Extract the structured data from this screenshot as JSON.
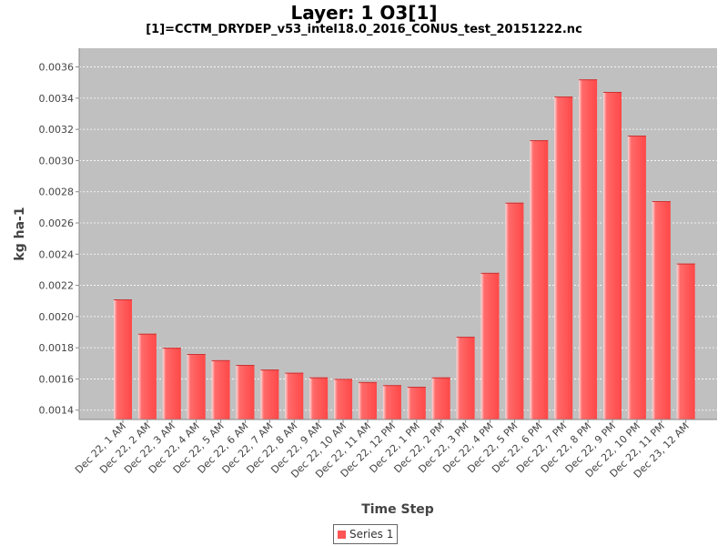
{
  "title": "Layer: 1 O3[1]",
  "subtitle": "[1]=CCTM_DRYDEP_v53_intel18.0_2016_CONUS_test_20151222.nc",
  "chart_data": {
    "type": "bar",
    "title": "Layer: 1 O3[1]",
    "subtitle": "[1]=CCTM_DRYDEP_v53_intel18.0_2016_CONUS_test_20151222.nc",
    "xlabel": "Time Step",
    "ylabel": "kg ha-1",
    "categories": [
      "Dec 22, 1 AM",
      "Dec 22, 2 AM",
      "Dec 22, 3 AM",
      "Dec 22, 4 AM",
      "Dec 22, 5 AM",
      "Dec 22, 6 AM",
      "Dec 22, 7 AM",
      "Dec 22, 8 AM",
      "Dec 22, 9 AM",
      "Dec 22, 10 AM",
      "Dec 22, 11 AM",
      "Dec 22, 12 PM",
      "Dec 22, 1 PM",
      "Dec 22, 2 PM",
      "Dec 22, 3 PM",
      "Dec 22, 4 PM",
      "Dec 22, 5 PM",
      "Dec 22, 6 PM",
      "Dec 22, 7 PM",
      "Dec 22, 8 PM",
      "Dec 22, 9 PM",
      "Dec 22, 10 PM",
      "Dec 22, 11 PM",
      "Dec 23, 12 AM"
    ],
    "series": [
      {
        "name": "Series 1",
        "color": "#ff5555",
        "values": [
          0.00211,
          0.00189,
          0.0018,
          0.00176,
          0.00172,
          0.00169,
          0.00166,
          0.00164,
          0.00161,
          0.0016,
          0.00158,
          0.00156,
          0.00155,
          0.00161,
          0.00187,
          0.00228,
          0.00273,
          0.00313,
          0.00341,
          0.00352,
          0.00344,
          0.00316,
          0.00274,
          0.00234
        ]
      }
    ],
    "ylim": [
      0.00134,
      0.00372
    ],
    "yticks": [
      "0.0014",
      "0.0016",
      "0.0018",
      "0.0020",
      "0.0022",
      "0.0024",
      "0.0026",
      "0.0028",
      "0.0030",
      "0.0032",
      "0.0034",
      "0.0036"
    ],
    "grid": true,
    "legend_position": "bottom-center",
    "plot_background": "#c0c0c0"
  }
}
